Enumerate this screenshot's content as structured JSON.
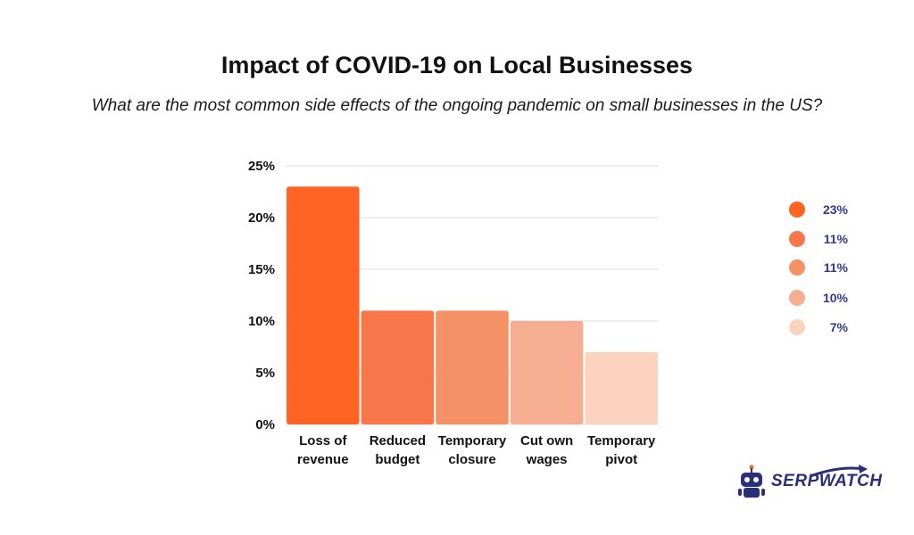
{
  "title": "Impact of COVID-19 on Local Businesses",
  "subtitle": "What are the most common side effects of the ongoing pandemic on small businesses in the US?",
  "logo": {
    "text": "SERPWATCH",
    "icon": "robot-icon"
  },
  "chart_data": {
    "type": "bar",
    "title": "Impact of COVID-19 on Local Businesses",
    "subtitle": "What are the most common side effects of the ongoing pandemic on small businesses in the US?",
    "categories": [
      [
        "Loss of",
        "revenue"
      ],
      [
        "Reduced",
        "budget"
      ],
      [
        "Temporary",
        "closure"
      ],
      [
        "Cut own",
        "wages"
      ],
      [
        "Temporary",
        "pivot"
      ]
    ],
    "values": [
      23,
      11,
      11,
      10,
      7
    ],
    "colors": [
      "#ff6424",
      "#f7774a",
      "#f59166",
      "#f5ae91",
      "#fcd3bf"
    ],
    "yticks": [
      "0%",
      "5%",
      "10%",
      "15%",
      "20%",
      "25%"
    ],
    "ylim": [
      0,
      25
    ],
    "grid": true,
    "legend": {
      "position": "right",
      "labels": [
        "23%",
        "11%",
        "11%",
        "10%",
        "7%"
      ]
    }
  }
}
